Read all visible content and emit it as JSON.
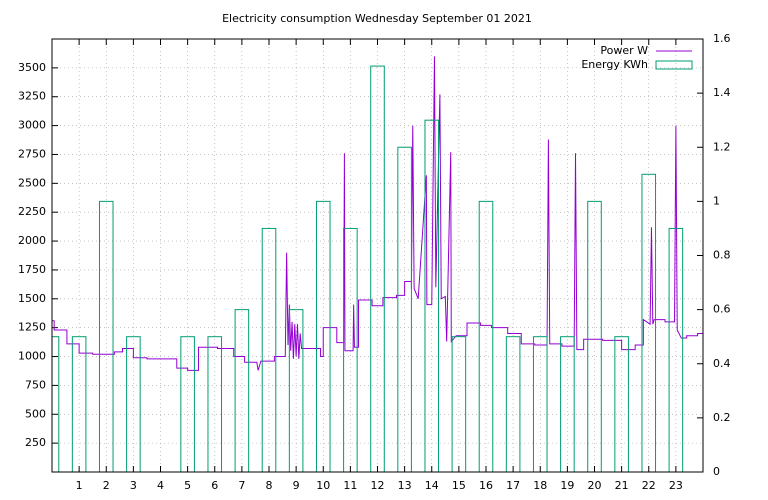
{
  "chart_data": {
    "type": "combo",
    "title": "Electricity consumption Wednesday September 01 2021",
    "xlim": [
      0,
      24
    ],
    "xticks": [
      1,
      2,
      3,
      4,
      5,
      6,
      7,
      8,
      9,
      10,
      11,
      12,
      13,
      14,
      15,
      16,
      17,
      18,
      19,
      20,
      21,
      22,
      23
    ],
    "ylim": [
      0,
      3750
    ],
    "yticks": [
      250,
      500,
      750,
      1000,
      1250,
      1500,
      1750,
      2000,
      2250,
      2500,
      2750,
      3000,
      3250,
      3500
    ],
    "y2lim": [
      0,
      1.6
    ],
    "y2ticks": [
      0,
      0.2,
      0.4,
      0.6,
      0.8,
      1,
      1.2,
      1.4,
      1.6
    ],
    "grid": true,
    "legend": "top-right",
    "series": [
      {
        "name": "Power W",
        "type": "line",
        "color": "#9400d3",
        "x": [
          0,
          0.08,
          0.08,
          0.55,
          0.55,
          1.0,
          1.0,
          1.5,
          1.5,
          2.3,
          2.3,
          2.6,
          2.6,
          3.0,
          3.0,
          3.5,
          3.5,
          4.6,
          4.6,
          5.0,
          5.0,
          5.4,
          5.4,
          6.1,
          6.1,
          6.7,
          6.7,
          7.1,
          7.1,
          7.55,
          7.6,
          7.7,
          8.2,
          8.2,
          8.6,
          8.65,
          8.7,
          8.75,
          8.8,
          8.85,
          8.9,
          8.95,
          9.0,
          9.05,
          9.1,
          9.15,
          9.2,
          9.9,
          9.9,
          10.0,
          10.0,
          10.5,
          10.5,
          10.75,
          10.78,
          10.8,
          11.1,
          11.12,
          11.15,
          11.3,
          11.3,
          11.8,
          11.8,
          12.2,
          12.2,
          12.7,
          12.7,
          13.0,
          13.0,
          13.25,
          13.25,
          13.3,
          13.35,
          13.5,
          13.8,
          13.82,
          14.0,
          14.1,
          14.15,
          14.3,
          14.35,
          14.5,
          14.55,
          14.7,
          14.72,
          14.9,
          15.3,
          15.3,
          15.8,
          15.8,
          16.2,
          16.2,
          16.8,
          16.8,
          17.3,
          17.3,
          17.8,
          17.8,
          18.25,
          18.3,
          18.35,
          18.8,
          18.8,
          19.25,
          19.3,
          19.35,
          19.6,
          19.6,
          20.3,
          20.3,
          21.0,
          21.0,
          21.5,
          21.5,
          21.8,
          21.8,
          22.05,
          22.1,
          22.15,
          22.2,
          22.6,
          22.6,
          22.95,
          23.0,
          23.05,
          23.2,
          23.4,
          23.4,
          23.8,
          23.8,
          24
        ],
        "values": [
          1310,
          1310,
          1230,
          1230,
          1110,
          1110,
          1030,
          1030,
          1020,
          1020,
          1040,
          1040,
          1070,
          1070,
          990,
          990,
          980,
          980,
          900,
          900,
          880,
          880,
          1080,
          1080,
          1070,
          1070,
          1000,
          1000,
          950,
          950,
          880,
          960,
          960,
          1000,
          1000,
          1900,
          1100,
          1450,
          1050,
          1300,
          980,
          1280,
          1000,
          1280,
          980,
          1200,
          1070,
          1070,
          1000,
          1000,
          1250,
          1250,
          1120,
          1120,
          2760,
          1050,
          1050,
          1450,
          1080,
          1080,
          1490,
          1490,
          1440,
          1440,
          1510,
          1510,
          1530,
          1530,
          1650,
          1650,
          1590,
          3000,
          1590,
          1500,
          2570,
          1450,
          1450,
          3600,
          1600,
          3270,
          1500,
          1520,
          1130,
          2770,
          1130,
          1180,
          1180,
          1290,
          1290,
          1270,
          1270,
          1250,
          1250,
          1200,
          1200,
          1110,
          1110,
          1100,
          1100,
          2880,
          1110,
          1110,
          1090,
          1090,
          2760,
          1060,
          1060,
          1150,
          1150,
          1140,
          1140,
          1060,
          1060,
          1100,
          1100,
          1320,
          1280,
          2120,
          1280,
          1320,
          1320,
          1300,
          1300,
          3000,
          1230,
          1160,
          1160,
          1180,
          1180,
          1200,
          1200
        ]
      },
      {
        "name": "Energy KWh",
        "type": "bar",
        "axis": "y2",
        "color": "#009e73",
        "x": [
          0,
          1,
          2,
          3,
          5,
          6,
          7,
          8,
          9,
          10,
          11,
          12,
          13,
          14,
          15,
          16,
          17,
          18,
          19,
          20,
          21,
          22,
          23
        ],
        "values": [
          0.5,
          0.5,
          1,
          0.5,
          0.5,
          0.5,
          0.6,
          0.9,
          0.6,
          1,
          0.9,
          1.5,
          1.2,
          1.3,
          0.5,
          1,
          0.5,
          0.5,
          0.5,
          1,
          0.5,
          1.1,
          0.9
        ]
      }
    ]
  }
}
